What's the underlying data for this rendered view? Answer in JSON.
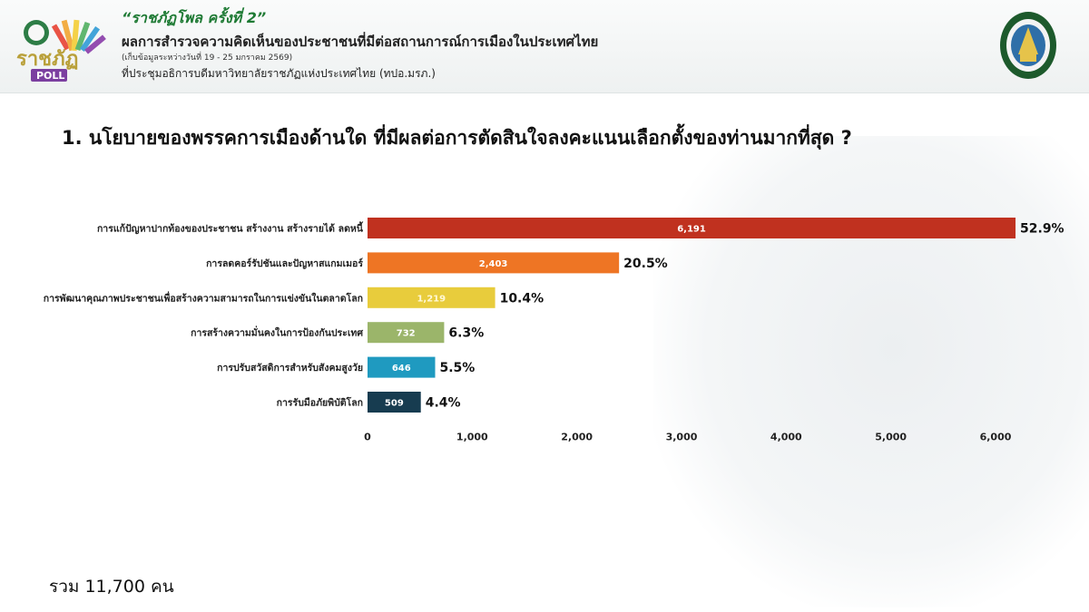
{
  "header": {
    "title": "“ราชภัฏโพล ครั้งที่ 2”",
    "subtitle": "ผลการสำรวจความคิดเห็นของประชาชนที่มีต่อสถานการณ์การเมืองในประเทศไทย",
    "date_range": "(เก็บข้อมูลระหว่างวันที่ 19 - 25 มกราคม 2569)",
    "organization": "ที่ประชุมอธิการบดีมหาวิทยาลัยราชภัฏแห่งประเทศไทย (ทปอ.มรภ.)",
    "logo_text": "ราชภัฏ",
    "logo_poll": "POLL"
  },
  "question": "1. นโยบายของพรรคการเมืองด้านใด ที่มีผลต่อการตัดสินใจลงคะแนนเลือกตั้งของท่านมากที่สุด ?",
  "total": "รวม 11,700 คน",
  "chart_data": {
    "type": "bar",
    "orientation": "horizontal",
    "categories": [
      "การแก้ปัญหาปากท้องของประชาชน สร้างงาน สร้างรายได้ ลดหนี้",
      "การลดคอร์รัปชันและปัญหาสแกมเมอร์",
      "การพัฒนาคุณภาพประชาชนเพื่อสร้างความสามารถในการแข่งขันในตลาดโลก",
      "การสร้างความมั่นคงในการป้องกันประเทศ",
      "การปรับสวัสดิการสำหรับสังคมสูงวัย",
      "การรับมือภัยพิบัติโลก"
    ],
    "values": [
      6191,
      2403,
      1219,
      732,
      646,
      509
    ],
    "value_labels": [
      "6,191",
      "2,403",
      "1,219",
      "732",
      "646",
      "509"
    ],
    "percent_labels": [
      "52.9%",
      "20.5%",
      "10.4%",
      "6.3%",
      "5.5%",
      "4.4%"
    ],
    "colors": [
      "#c0311f",
      "#ee7524",
      "#e8cc3c",
      "#9bb56a",
      "#1f9ac0",
      "#173c50"
    ],
    "xlim": [
      0,
      6000
    ],
    "xticks": [
      "0",
      "1,000",
      "2,000",
      "3,000",
      "4,000",
      "5,000",
      "6,000"
    ],
    "grid": false,
    "legend": "none"
  }
}
